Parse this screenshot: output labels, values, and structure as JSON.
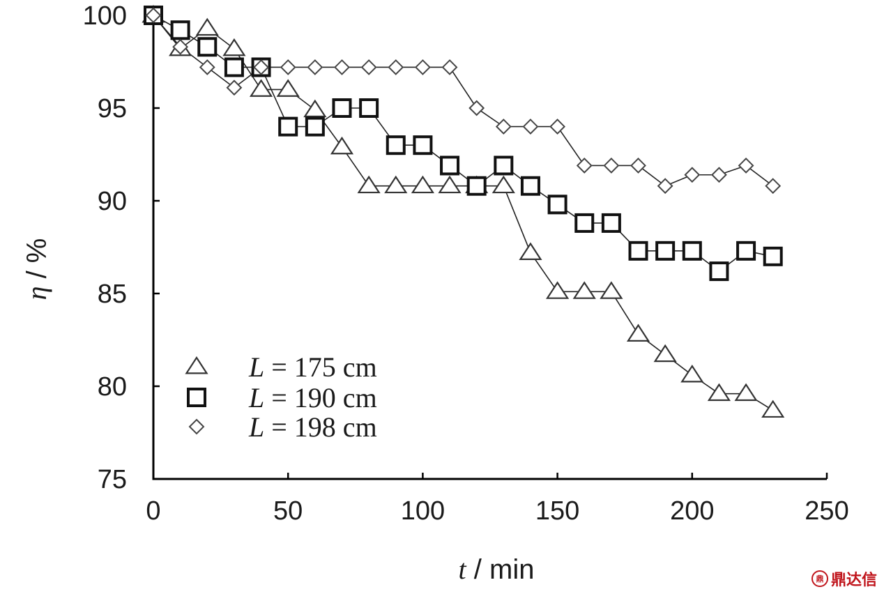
{
  "chart_data": {
    "type": "line",
    "xlabel_var": "t",
    "xlabel_unit": " / min",
    "ylabel_var": "η",
    "ylabel_unit": " / %",
    "xlim": [
      0,
      250
    ],
    "ylim": [
      75,
      100
    ],
    "xticks": [
      0,
      50,
      100,
      150,
      200,
      250
    ],
    "yticks": [
      75,
      80,
      85,
      90,
      95,
      100
    ],
    "grid": false,
    "legend_position": "bottom-left",
    "series": [
      {
        "name": "L = 175 cm",
        "name_var": "L",
        "name_rest": " = 175 cm",
        "marker": "triangle",
        "x": [
          0,
          10,
          20,
          30,
          40,
          50,
          60,
          70,
          80,
          90,
          100,
          110,
          120,
          130,
          140,
          150,
          160,
          170,
          180,
          190,
          200,
          210,
          220,
          230
        ],
        "y": [
          100,
          98.2,
          99.3,
          98.2,
          96,
          96,
          94.9,
          92.9,
          90.8,
          90.8,
          90.8,
          90.8,
          90.8,
          90.8,
          87.2,
          85.1,
          85.1,
          85.1,
          82.8,
          81.7,
          80.6,
          79.6,
          79.6,
          78.7
        ]
      },
      {
        "name": "L = 190 cm",
        "name_var": "L",
        "name_rest": " = 190 cm",
        "marker": "square",
        "x": [
          0,
          10,
          20,
          30,
          40,
          50,
          60,
          70,
          80,
          90,
          100,
          110,
          120,
          130,
          140,
          150,
          160,
          170,
          180,
          190,
          200,
          210,
          220,
          230
        ],
        "y": [
          100,
          99.2,
          98.3,
          97.2,
          97.2,
          94,
          94,
          95,
          95,
          93,
          93,
          91.9,
          90.8,
          91.9,
          90.8,
          89.8,
          88.8,
          88.8,
          87.3,
          87.3,
          87.3,
          86.2,
          87.3,
          87
        ]
      },
      {
        "name": "L = 198 cm",
        "name_var": "L",
        "name_rest": " = 198 cm",
        "marker": "diamond",
        "x": [
          0,
          10,
          20,
          30,
          40,
          50,
          60,
          70,
          80,
          90,
          100,
          110,
          120,
          130,
          140,
          150,
          160,
          170,
          180,
          190,
          200,
          210,
          220,
          230
        ],
        "y": [
          100,
          98.3,
          97.2,
          96.1,
          97.2,
          97.2,
          97.2,
          97.2,
          97.2,
          97.2,
          97.2,
          97.2,
          95,
          94,
          94,
          94,
          91.9,
          91.9,
          91.9,
          90.8,
          91.4,
          91.4,
          91.9,
          90.8
        ]
      }
    ]
  },
  "watermark": {
    "icon": "dingdaxin-logo-icon",
    "logo_text": "鼎",
    "text": "鼎达信"
  }
}
